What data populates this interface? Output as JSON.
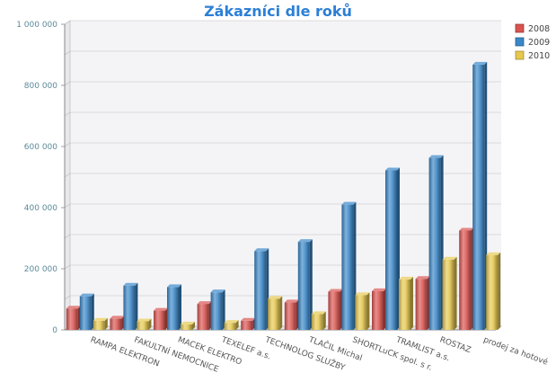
{
  "chart_data": {
    "type": "bar",
    "title": "Zákazníci dle roků",
    "xlabel": "",
    "ylabel": "",
    "ylim": [
      0,
      1000000
    ],
    "yticks": [
      0,
      200000,
      400000,
      600000,
      800000,
      1000000
    ],
    "ytick_labels": [
      "0",
      "200 000",
      "400 000",
      "600 000",
      "800 000",
      "1 000 000"
    ],
    "categories": [
      "RAMPA ELEKTRON",
      "FAKULTNÍ NEMOCNICE",
      "MACEK ELEKTRO",
      "TEXELEF a.s.",
      "TECHNOLOG SLUŽBY",
      "TLAČIL Michal",
      "SHORTLuCK spol. s r.",
      "TRAMLIST a.s.",
      "ROSTAZ",
      "prodej za hotové"
    ],
    "series": [
      {
        "name": "2008",
        "color": "#d9534f",
        "values": [
          70000,
          37000,
          63000,
          85000,
          30000,
          90000,
          125000,
          127000,
          167000,
          325000
        ]
      },
      {
        "name": "2009",
        "color": "#3a87c8",
        "values": [
          110000,
          145000,
          140000,
          123000,
          258000,
          288000,
          410000,
          522000,
          563000,
          868000
        ]
      },
      {
        "name": "2010",
        "color": "#e6c84f",
        "values": [
          30000,
          28000,
          18000,
          23000,
          102000,
          52000,
          114000,
          165000,
          230000,
          245000
        ]
      }
    ],
    "grid": true,
    "legend_position": "top-right"
  }
}
